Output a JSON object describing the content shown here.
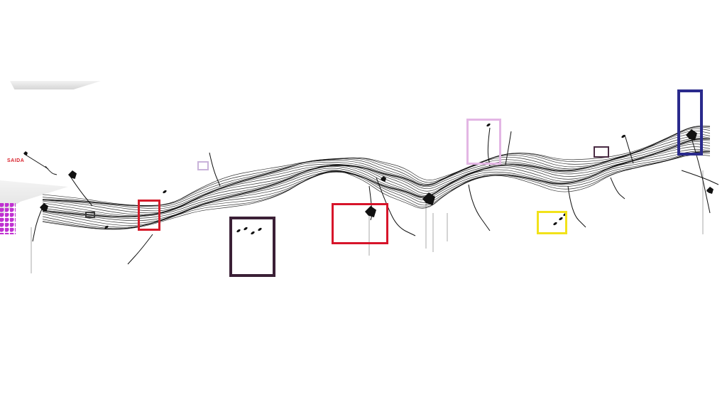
{
  "scene": {
    "background": "#ffffff",
    "ink": "#111111",
    "sign_text": "SAIDA"
  },
  "frames": [
    {
      "id": "frame-small-grey-left",
      "color": "#3a3a3a"
    },
    {
      "id": "frame-red-small",
      "color": "#d51b2a"
    },
    {
      "id": "frame-lilac-small",
      "color": "#c9b3da"
    },
    {
      "id": "frame-dark-purple-large",
      "color": "#3b2036"
    },
    {
      "id": "frame-red-large",
      "color": "#d7142a"
    },
    {
      "id": "frame-lavender-pink",
      "color": "#e3b6e4"
    },
    {
      "id": "frame-yellow",
      "color": "#f2e21a"
    },
    {
      "id": "frame-small-plum",
      "color": "#4a2c44"
    },
    {
      "id": "frame-blue-tall",
      "color": "#2a2a8c"
    }
  ]
}
